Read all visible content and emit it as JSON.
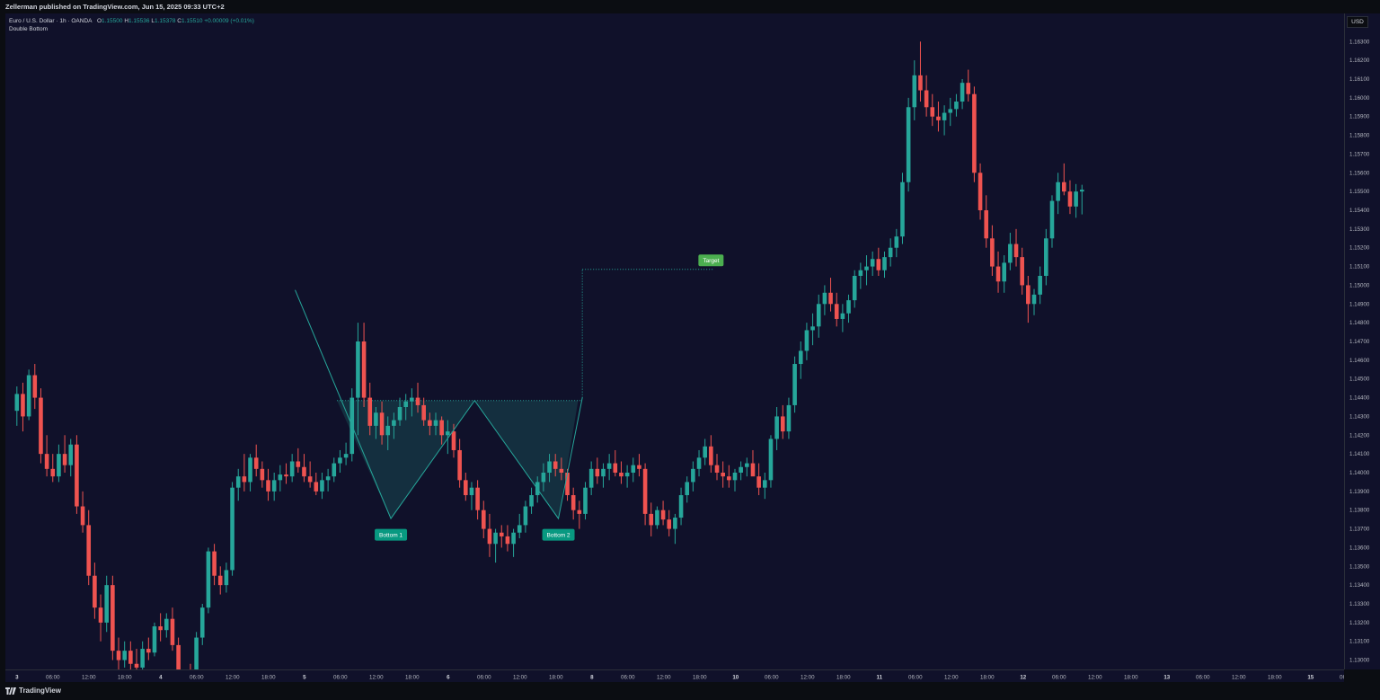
{
  "header": {
    "published": "Zellerman published on TradingView.com, Jun 15, 2025 09:33 UTC+2"
  },
  "legend": {
    "symbol": "Euro / U.S. Dollar · 1h · OANDA",
    "open_label": "O",
    "open": "1.15500",
    "high_label": "H",
    "high": "1.15536",
    "low_label": "L",
    "low": "1.15378",
    "close_label": "C",
    "close": "1.15510",
    "change": "+0.00009 (+0.01%)",
    "indicator": "Double Bottom"
  },
  "currency": "USD",
  "footer": {
    "brand": "TradingView"
  },
  "colors": {
    "up": "#26a69a",
    "down": "#ef5350",
    "pattern": "#26a69a",
    "fill": "#163a47",
    "target": "#4caf50",
    "background": "#10112a"
  },
  "chart_data": {
    "type": "candlestick",
    "symbol": "EURUSD",
    "interval": "1h",
    "ylim": [
      1.1295,
      1.1645
    ],
    "y_ticks": [
      "1.16300",
      "1.16200",
      "1.16100",
      "1.16000",
      "1.15900",
      "1.15800",
      "1.15700",
      "1.15600",
      "1.15500",
      "1.15400",
      "1.15300",
      "1.15200",
      "1.15100",
      "1.15000",
      "1.14900",
      "1.14800",
      "1.14700",
      "1.14600",
      "1.14500",
      "1.14400",
      "1.14300",
      "1.14200",
      "1.14100",
      "1.14000",
      "1.13900",
      "1.13800",
      "1.13700",
      "1.13600",
      "1.13500",
      "1.13400",
      "1.13300",
      "1.13200",
      "1.13100",
      "1.13000"
    ],
    "x_ticks": [
      "3",
      "06:00",
      "12:00",
      "18:00",
      "4",
      "06:00",
      "12:00",
      "18:00",
      "5",
      "06:00",
      "12:00",
      "18:00",
      "6",
      "06:00",
      "12:00",
      "18:00",
      "8",
      "06:00",
      "12:00",
      "18:00",
      "10",
      "06:00",
      "12:00",
      "18:00",
      "11",
      "06:00",
      "12:00",
      "18:00",
      "12",
      "06:00",
      "12:00",
      "18:00",
      "13",
      "06:00",
      "12:00",
      "18:00",
      "15",
      "06:00"
    ],
    "bar_start_index": -2,
    "candles": [
      [
        1.1433,
        1.1446,
        1.1425,
        1.1442
      ],
      [
        1.1442,
        1.1448,
        1.1422,
        1.143
      ],
      [
        1.143,
        1.1455,
        1.1428,
        1.1452
      ],
      [
        1.1452,
        1.1458,
        1.1434,
        1.144
      ],
      [
        1.144,
        1.1445,
        1.1405,
        1.141
      ],
      [
        1.141,
        1.142,
        1.1398,
        1.1402
      ],
      [
        1.1402,
        1.141,
        1.1395,
        1.1398
      ],
      [
        1.1398,
        1.1415,
        1.1395,
        1.141
      ],
      [
        1.141,
        1.142,
        1.14,
        1.1404
      ],
      [
        1.1404,
        1.1418,
        1.1398,
        1.1415
      ],
      [
        1.1415,
        1.142,
        1.1378,
        1.1382
      ],
      [
        1.1382,
        1.139,
        1.1368,
        1.1372
      ],
      [
        1.1372,
        1.138,
        1.134,
        1.1345
      ],
      [
        1.1345,
        1.1352,
        1.1322,
        1.1328
      ],
      [
        1.1328,
        1.1335,
        1.131,
        1.132
      ],
      [
        1.132,
        1.1345,
        1.1315,
        1.134
      ],
      [
        1.134,
        1.1345,
        1.13,
        1.1305
      ],
      [
        1.1305,
        1.1312,
        1.129,
        1.13
      ],
      [
        1.13,
        1.131,
        1.1296,
        1.1305
      ],
      [
        1.1305,
        1.131,
        1.1295,
        1.1298
      ],
      [
        1.1298,
        1.1306,
        1.1292,
        1.1296
      ],
      [
        1.1296,
        1.131,
        1.1295,
        1.1306
      ],
      [
        1.1306,
        1.1312,
        1.13,
        1.1304
      ],
      [
        1.1304,
        1.132,
        1.1302,
        1.1318
      ],
      [
        1.1318,
        1.1325,
        1.131,
        1.1316
      ],
      [
        1.1316,
        1.1325,
        1.1312,
        1.1322
      ],
      [
        1.1322,
        1.1328,
        1.1305,
        1.1308
      ],
      [
        1.1308,
        1.1312,
        1.1288,
        1.129
      ],
      [
        1.129,
        1.1295,
        1.128,
        1.1288
      ],
      [
        1.1288,
        1.1298,
        1.1276,
        1.1282
      ],
      [
        1.1282,
        1.1315,
        1.128,
        1.1312
      ],
      [
        1.1312,
        1.133,
        1.1308,
        1.1328
      ],
      [
        1.1328,
        1.136,
        1.1325,
        1.1358
      ],
      [
        1.1358,
        1.1362,
        1.134,
        1.1345
      ],
      [
        1.1345,
        1.135,
        1.1335,
        1.134
      ],
      [
        1.134,
        1.1352,
        1.1336,
        1.1348
      ],
      [
        1.1348,
        1.1395,
        1.1345,
        1.1392
      ],
      [
        1.1392,
        1.1402,
        1.1385,
        1.1398
      ],
      [
        1.1398,
        1.141,
        1.139,
        1.1395
      ],
      [
        1.1395,
        1.141,
        1.139,
        1.1408
      ],
      [
        1.1408,
        1.1415,
        1.1398,
        1.1402
      ],
      [
        1.1402,
        1.1406,
        1.1392,
        1.1396
      ],
      [
        1.1396,
        1.1402,
        1.1385,
        1.139
      ],
      [
        1.139,
        1.14,
        1.1385,
        1.1396
      ],
      [
        1.1396,
        1.1404,
        1.139,
        1.1399
      ],
      [
        1.1399,
        1.1405,
        1.1394,
        1.1398
      ],
      [
        1.1398,
        1.141,
        1.1395,
        1.1406
      ],
      [
        1.1406,
        1.1413,
        1.14,
        1.1403
      ],
      [
        1.1403,
        1.141,
        1.1395,
        1.1398
      ],
      [
        1.1398,
        1.1406,
        1.1392,
        1.1395
      ],
      [
        1.1395,
        1.14,
        1.1388,
        1.139
      ],
      [
        1.139,
        1.14,
        1.1386,
        1.1396
      ],
      [
        1.1396,
        1.1402,
        1.139,
        1.1398
      ],
      [
        1.1398,
        1.1408,
        1.1395,
        1.1405
      ],
      [
        1.1405,
        1.1412,
        1.14,
        1.1408
      ],
      [
        1.1408,
        1.1416,
        1.1404,
        1.141
      ],
      [
        1.141,
        1.1445,
        1.1406,
        1.144
      ],
      [
        1.144,
        1.148,
        1.142,
        1.147
      ],
      [
        1.147,
        1.148,
        1.1435,
        1.144
      ],
      [
        1.144,
        1.1448,
        1.142,
        1.1425
      ],
      [
        1.1425,
        1.1435,
        1.1418,
        1.1432
      ],
      [
        1.1432,
        1.1438,
        1.1415,
        1.142
      ],
      [
        1.142,
        1.143,
        1.1412,
        1.1425
      ],
      [
        1.1425,
        1.1432,
        1.1418,
        1.1428
      ],
      [
        1.1428,
        1.144,
        1.1425,
        1.1435
      ],
      [
        1.1435,
        1.1442,
        1.1428,
        1.1438
      ],
      [
        1.1438,
        1.1445,
        1.143,
        1.144
      ],
      [
        1.144,
        1.1448,
        1.1432,
        1.1436
      ],
      [
        1.1436,
        1.144,
        1.1425,
        1.1428
      ],
      [
        1.1428,
        1.1432,
        1.142,
        1.1425
      ],
      [
        1.1425,
        1.1432,
        1.142,
        1.1428
      ],
      [
        1.1428,
        1.143,
        1.1415,
        1.142
      ],
      [
        1.142,
        1.1428,
        1.141,
        1.1422
      ],
      [
        1.1422,
        1.1426,
        1.1408,
        1.1412
      ],
      [
        1.1412,
        1.1418,
        1.1392,
        1.1396
      ],
      [
        1.1396,
        1.14,
        1.1385,
        1.1388
      ],
      [
        1.1388,
        1.1395,
        1.138,
        1.1392
      ],
      [
        1.1392,
        1.1396,
        1.1375,
        1.138
      ],
      [
        1.138,
        1.1385,
        1.1365,
        1.137
      ],
      [
        1.137,
        1.1378,
        1.1355,
        1.1362
      ],
      [
        1.1362,
        1.137,
        1.1352,
        1.1368
      ],
      [
        1.1368,
        1.1372,
        1.136,
        1.1366
      ],
      [
        1.1366,
        1.1372,
        1.1358,
        1.1362
      ],
      [
        1.1362,
        1.137,
        1.1355,
        1.1368
      ],
      [
        1.1368,
        1.1378,
        1.1365,
        1.1372
      ],
      [
        1.1372,
        1.1385,
        1.1368,
        1.1382
      ],
      [
        1.1382,
        1.1392,
        1.1378,
        1.1388
      ],
      [
        1.1388,
        1.1398,
        1.1384,
        1.1395
      ],
      [
        1.1395,
        1.1405,
        1.139,
        1.14
      ],
      [
        1.14,
        1.141,
        1.1395,
        1.1406
      ],
      [
        1.1406,
        1.141,
        1.1398,
        1.1402
      ],
      [
        1.1402,
        1.1408,
        1.1396,
        1.14
      ],
      [
        1.14,
        1.1402,
        1.1385,
        1.1388
      ],
      [
        1.1388,
        1.1392,
        1.1375,
        1.138
      ],
      [
        1.138,
        1.1385,
        1.137,
        1.1378
      ],
      [
        1.1378,
        1.1395,
        1.1375,
        1.1392
      ],
      [
        1.1392,
        1.1406,
        1.1388,
        1.1402
      ],
      [
        1.1402,
        1.1408,
        1.1394,
        1.1398
      ],
      [
        1.1398,
        1.1405,
        1.1392,
        1.1402
      ],
      [
        1.1402,
        1.141,
        1.1396,
        1.1405
      ],
      [
        1.1405,
        1.1412,
        1.1398,
        1.14
      ],
      [
        1.14,
        1.1406,
        1.1394,
        1.1398
      ],
      [
        1.1398,
        1.1404,
        1.1392,
        1.14
      ],
      [
        1.14,
        1.1408,
        1.1395,
        1.1404
      ],
      [
        1.1404,
        1.141,
        1.1398,
        1.1402
      ],
      [
        1.1402,
        1.1405,
        1.1372,
        1.1378
      ],
      [
        1.1378,
        1.1384,
        1.1366,
        1.1372
      ],
      [
        1.1372,
        1.1382,
        1.137,
        1.138
      ],
      [
        1.138,
        1.1385,
        1.1372,
        1.1375
      ],
      [
        1.1375,
        1.138,
        1.1366,
        1.137
      ],
      [
        1.137,
        1.1378,
        1.1362,
        1.1376
      ],
      [
        1.1376,
        1.1392,
        1.1372,
        1.1388
      ],
      [
        1.1388,
        1.1398,
        1.1384,
        1.1395
      ],
      [
        1.1395,
        1.1406,
        1.139,
        1.1402
      ],
      [
        1.1402,
        1.1412,
        1.1398,
        1.1408
      ],
      [
        1.1408,
        1.1418,
        1.1404,
        1.1414
      ],
      [
        1.1414,
        1.142,
        1.14,
        1.1404
      ],
      [
        1.1404,
        1.141,
        1.1396,
        1.14
      ],
      [
        1.14,
        1.1406,
        1.1392,
        1.1398
      ],
      [
        1.1398,
        1.1404,
        1.1392,
        1.1396
      ],
      [
        1.1396,
        1.1402,
        1.139,
        1.14
      ],
      [
        1.14,
        1.1406,
        1.1396,
        1.1403
      ],
      [
        1.1403,
        1.1408,
        1.1398,
        1.1405
      ],
      [
        1.1405,
        1.1412,
        1.14,
        1.1398
      ],
      [
        1.1398,
        1.1405,
        1.1388,
        1.1392
      ],
      [
        1.1392,
        1.14,
        1.1386,
        1.1396
      ],
      [
        1.1396,
        1.142,
        1.1392,
        1.1418
      ],
      [
        1.1418,
        1.1435,
        1.1412,
        1.143
      ],
      [
        1.143,
        1.1436,
        1.1418,
        1.1422
      ],
      [
        1.1422,
        1.144,
        1.1418,
        1.1436
      ],
      [
        1.1436,
        1.1462,
        1.1432,
        1.1458
      ],
      [
        1.1458,
        1.147,
        1.145,
        1.1465
      ],
      [
        1.1465,
        1.148,
        1.146,
        1.1476
      ],
      [
        1.1476,
        1.1485,
        1.1468,
        1.1478
      ],
      [
        1.1478,
        1.1495,
        1.1472,
        1.149
      ],
      [
        1.149,
        1.15,
        1.1484,
        1.1496
      ],
      [
        1.1496,
        1.1504,
        1.1486,
        1.149
      ],
      [
        1.149,
        1.1496,
        1.1478,
        1.1482
      ],
      [
        1.1482,
        1.149,
        1.1475,
        1.1485
      ],
      [
        1.1485,
        1.1495,
        1.148,
        1.1492
      ],
      [
        1.1492,
        1.1508,
        1.1488,
        1.1505
      ],
      [
        1.1505,
        1.1512,
        1.1498,
        1.1508
      ],
      [
        1.1508,
        1.1516,
        1.15,
        1.151
      ],
      [
        1.151,
        1.1518,
        1.1505,
        1.1514
      ],
      [
        1.1514,
        1.152,
        1.1505,
        1.1508
      ],
      [
        1.1508,
        1.1518,
        1.1504,
        1.1515
      ],
      [
        1.1515,
        1.1525,
        1.151,
        1.152
      ],
      [
        1.152,
        1.153,
        1.1515,
        1.1526
      ],
      [
        1.1526,
        1.156,
        1.1522,
        1.1555
      ],
      [
        1.1555,
        1.16,
        1.155,
        1.1595
      ],
      [
        1.1595,
        1.162,
        1.1588,
        1.1612
      ],
      [
        1.1612,
        1.163,
        1.1598,
        1.1604
      ],
      [
        1.1604,
        1.1612,
        1.159,
        1.1595
      ],
      [
        1.1595,
        1.1602,
        1.1585,
        1.159
      ],
      [
        1.159,
        1.1598,
        1.1582,
        1.1588
      ],
      [
        1.1588,
        1.1596,
        1.158,
        1.1592
      ],
      [
        1.1592,
        1.16,
        1.1585,
        1.1594
      ],
      [
        1.1594,
        1.1602,
        1.159,
        1.1598
      ],
      [
        1.1598,
        1.161,
        1.1594,
        1.1608
      ],
      [
        1.1608,
        1.1615,
        1.1598,
        1.1602
      ],
      [
        1.1602,
        1.1606,
        1.1555,
        1.156
      ],
      [
        1.156,
        1.1565,
        1.1535,
        1.154
      ],
      [
        1.154,
        1.1548,
        1.152,
        1.1525
      ],
      [
        1.1525,
        1.1532,
        1.1505,
        1.151
      ],
      [
        1.151,
        1.1518,
        1.1496,
        1.1502
      ],
      [
        1.1502,
        1.1516,
        1.1496,
        1.1512
      ],
      [
        1.1512,
        1.1528,
        1.1508,
        1.1522
      ],
      [
        1.1522,
        1.153,
        1.151,
        1.1515
      ],
      [
        1.1515,
        1.152,
        1.1495,
        1.15
      ],
      [
        1.15,
        1.1505,
        1.148,
        1.149
      ],
      [
        1.149,
        1.1498,
        1.1484,
        1.1495
      ],
      [
        1.1495,
        1.151,
        1.149,
        1.1505
      ],
      [
        1.1505,
        1.153,
        1.15,
        1.1525
      ],
      [
        1.1525,
        1.1548,
        1.152,
        1.1545
      ],
      [
        1.1545,
        1.156,
        1.1538,
        1.1555
      ],
      [
        1.1555,
        1.1565,
        1.1548,
        1.155
      ],
      [
        1.155,
        1.1556,
        1.1538,
        1.1542
      ],
      [
        1.1542,
        1.1554,
        1.1536,
        1.155
      ],
      [
        1.155,
        1.15536,
        1.15378,
        1.1551
      ]
    ],
    "pattern": {
      "name": "Double Bottom",
      "points": [
        [
          44.5,
          1.14975
        ],
        [
          60.5,
          1.13755
        ],
        [
          74.5,
          1.14385
        ],
        [
          88.5,
          1.13755
        ],
        [
          92.5,
          1.144
        ]
      ],
      "neckline": 1.14385,
      "target": 1.15085,
      "labels": [
        {
          "text": "Bottom 1",
          "x": 60.5,
          "y": 1.13755
        },
        {
          "text": "Bottom 2",
          "x": 88.5,
          "y": 1.13755
        },
        {
          "text": "Target",
          "x": 114.0,
          "y": 1.15085
        }
      ]
    }
  }
}
